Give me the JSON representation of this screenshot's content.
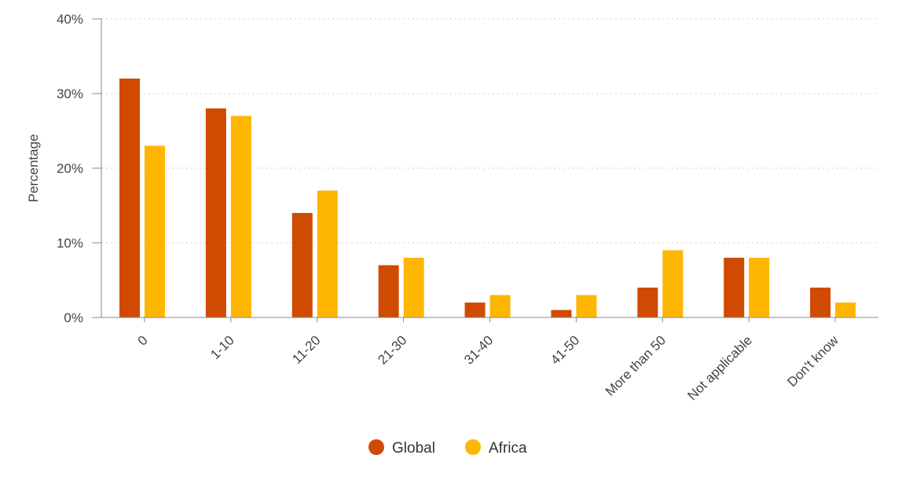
{
  "chart_data": {
    "type": "bar",
    "title": "",
    "xlabel": "",
    "ylabel": "Percentage",
    "ylim": [
      0,
      40
    ],
    "yticks": [
      0,
      10,
      20,
      30,
      40
    ],
    "ytick_format": "{v}%",
    "grid": true,
    "legend_position": "bottom-center",
    "categories": [
      "0",
      "1-10",
      "11-20",
      "21-30",
      "31-40",
      "41-50",
      "More than 50",
      "Not applicable",
      "Don't know"
    ],
    "series": [
      {
        "name": "Global",
        "color": "#d04a02",
        "values": [
          32,
          28,
          14,
          7,
          2,
          1,
          4,
          8,
          4
        ]
      },
      {
        "name": "Africa",
        "color": "#ffb600",
        "values": [
          23,
          27,
          17,
          8,
          3,
          3,
          9,
          8,
          2
        ]
      }
    ]
  }
}
